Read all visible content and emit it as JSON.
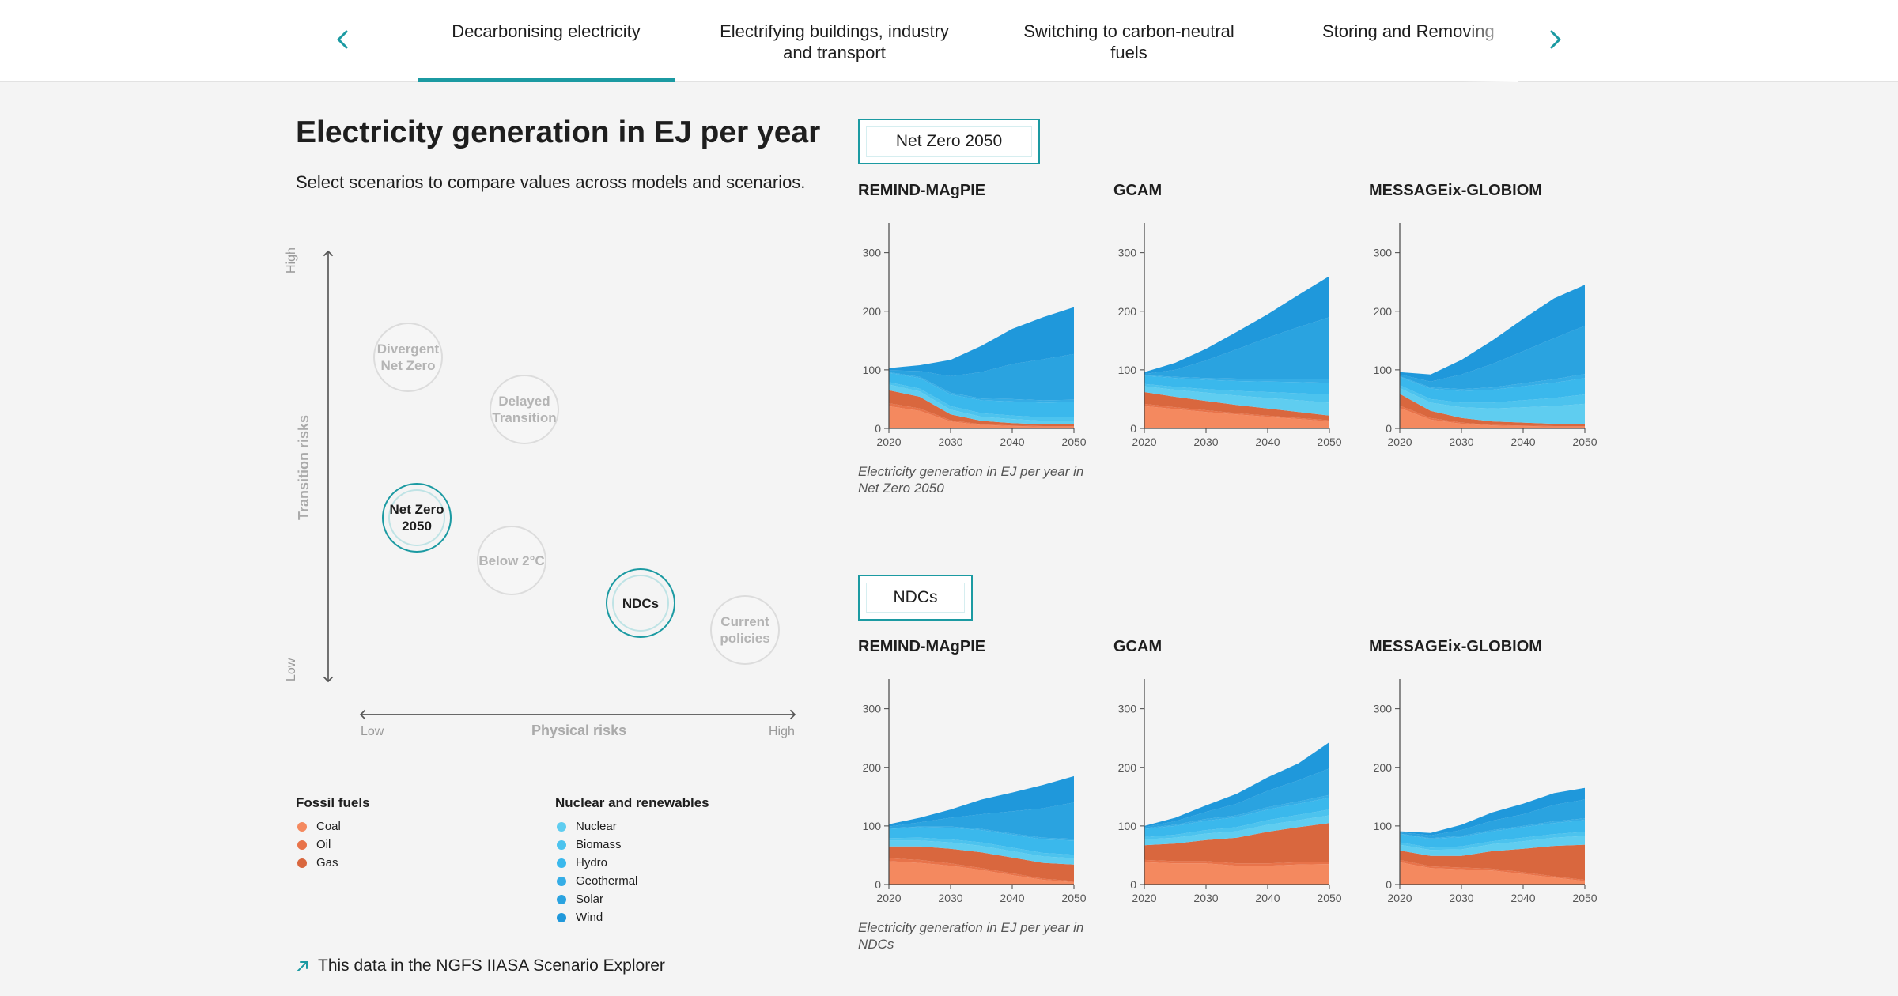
{
  "tabs": {
    "items": [
      {
        "label": "Decarbonising electricity",
        "active": true
      },
      {
        "label": "Electrifying buildings, industry and transport",
        "active": false
      },
      {
        "label": "Switching to carbon-neutral fuels",
        "active": false
      },
      {
        "label": "Storing and Removing",
        "active": false
      }
    ],
    "prev_icon": "chevron-left-icon",
    "next_icon": "chevron-right-icon"
  },
  "header": {
    "title": "Electricity generation in EJ per year",
    "subtitle": "Select scenarios to compare values across models and scenarios."
  },
  "scenario_map": {
    "y_axis": {
      "title": "Transition risks",
      "high": "High",
      "low": "Low"
    },
    "x_axis": {
      "title": "Physical risks",
      "low": "Low",
      "high": "High"
    },
    "bubbles": [
      {
        "label": "Divergent Net Zero",
        "selected": false
      },
      {
        "label": "Delayed Transition",
        "selected": false
      },
      {
        "label": "Net Zero 2050",
        "selected": true
      },
      {
        "label": "Below 2°C",
        "selected": false
      },
      {
        "label": "NDCs",
        "selected": true
      },
      {
        "label": "Current policies",
        "selected": false
      }
    ]
  },
  "legend": {
    "fossil": {
      "title": "Fossil fuels",
      "items": [
        {
          "label": "Coal",
          "color": "#f4895f"
        },
        {
          "label": "Oil",
          "color": "#e8734a"
        },
        {
          "label": "Gas",
          "color": "#d9673e"
        }
      ]
    },
    "renewables": {
      "title": "Nuclear and renewables",
      "items": [
        {
          "label": "Nuclear",
          "color": "#5fcdf0"
        },
        {
          "label": "Biomass",
          "color": "#4cc3ee"
        },
        {
          "label": "Hydro",
          "color": "#3ab8ec"
        },
        {
          "label": "Geothermal",
          "color": "#35ade6"
        },
        {
          "label": "Solar",
          "color": "#2aa3e0"
        },
        {
          "label": "Wind",
          "color": "#1f98db"
        }
      ]
    }
  },
  "explorer_link": {
    "label": "This data in the NGFS IIASA Scenario Explorer",
    "icon": "arrow-up-right-icon"
  },
  "colors": {
    "accent": "#1b9aa2"
  },
  "chart_data": [
    {
      "scenario": "Net Zero 2050",
      "caption": "Electricity generation in EJ per year in Net Zero 2050",
      "charts": [
        {
          "model": "REMIND-MAgPIE",
          "type": "area",
          "x": [
            2020,
            2025,
            2030,
            2035,
            2040,
            2045,
            2050
          ],
          "ylim": [
            0,
            340
          ],
          "yticks": [
            0,
            100,
            200,
            300
          ],
          "series": [
            {
              "name": "Coal",
              "values": [
                38,
                30,
                12,
                6,
                4,
                3,
                3
              ]
            },
            {
              "name": "Oil",
              "values": [
                5,
                4,
                2,
                1,
                1,
                1,
                1
              ]
            },
            {
              "name": "Gas",
              "values": [
                22,
                20,
                10,
                6,
                4,
                3,
                3
              ]
            },
            {
              "name": "Nuclear",
              "values": [
                10,
                9,
                8,
                7,
                7,
                6,
                6
              ]
            },
            {
              "name": "Biomass",
              "values": [
                4,
                5,
                6,
                6,
                6,
                6,
                6
              ]
            },
            {
              "name": "Hydro",
              "values": [
                16,
                18,
                20,
                22,
                24,
                25,
                26
              ]
            },
            {
              "name": "Geothermal",
              "values": [
                1,
                2,
                3,
                3,
                4,
                4,
                4
              ]
            },
            {
              "name": "Solar",
              "values": [
                3,
                10,
                28,
                45,
                60,
                70,
                78
              ]
            },
            {
              "name": "Wind",
              "values": [
                4,
                10,
                28,
                45,
                60,
                72,
                80
              ]
            }
          ]
        },
        {
          "model": "GCAM",
          "type": "area",
          "x": [
            2020,
            2025,
            2030,
            2035,
            2040,
            2045,
            2050
          ],
          "ylim": [
            0,
            340
          ],
          "yticks": [
            0,
            100,
            200,
            300
          ],
          "series": [
            {
              "name": "Coal",
              "values": [
                38,
                33,
                28,
                24,
                20,
                16,
                12
              ]
            },
            {
              "name": "Oil",
              "values": [
                4,
                3,
                3,
                2,
                2,
                2,
                2
              ]
            },
            {
              "name": "Gas",
              "values": [
                20,
                18,
                16,
                14,
                12,
                10,
                8
              ]
            },
            {
              "name": "Nuclear",
              "values": [
                10,
                12,
                14,
                16,
                18,
                20,
                22
              ]
            },
            {
              "name": "Biomass",
              "values": [
                4,
                5,
                6,
                8,
                10,
                12,
                14
              ]
            },
            {
              "name": "Hydro",
              "values": [
                14,
                15,
                16,
                17,
                18,
                19,
                20
              ]
            },
            {
              "name": "Geothermal",
              "values": [
                1,
                2,
                3,
                4,
                5,
                6,
                7
              ]
            },
            {
              "name": "Solar",
              "values": [
                2,
                12,
                30,
                50,
                70,
                88,
                105
              ]
            },
            {
              "name": "Wind",
              "values": [
                3,
                12,
                20,
                30,
                40,
                55,
                70
              ]
            }
          ]
        },
        {
          "model": "MESSAGEix-GLOBIOM",
          "type": "area",
          "x": [
            2020,
            2025,
            2030,
            2035,
            2040,
            2045,
            2050
          ],
          "ylim": [
            0,
            340
          ],
          "yticks": [
            0,
            100,
            200,
            300
          ],
          "series": [
            {
              "name": "Coal",
              "values": [
                35,
                15,
                8,
                5,
                4,
                3,
                3
              ]
            },
            {
              "name": "Oil",
              "values": [
                4,
                3,
                2,
                1,
                1,
                1,
                1
              ]
            },
            {
              "name": "Gas",
              "values": [
                20,
                12,
                8,
                6,
                5,
                4,
                4
              ]
            },
            {
              "name": "Nuclear",
              "values": [
                10,
                14,
                18,
                22,
                26,
                30,
                34
              ]
            },
            {
              "name": "Biomass",
              "values": [
                5,
                6,
                8,
                10,
                12,
                14,
                16
              ]
            },
            {
              "name": "Hydro",
              "values": [
                14,
                18,
                20,
                22,
                24,
                26,
                28
              ]
            },
            {
              "name": "Geothermal",
              "values": [
                1,
                2,
                3,
                4,
                5,
                6,
                7
              ]
            },
            {
              "name": "Solar",
              "values": [
                3,
                10,
                25,
                40,
                55,
                70,
                82
              ]
            },
            {
              "name": "Wind",
              "values": [
                4,
                12,
                25,
                40,
                55,
                68,
                70
              ]
            }
          ]
        }
      ]
    },
    {
      "scenario": "NDCs",
      "caption": "Electricity generation in EJ per year in NDCs",
      "charts": [
        {
          "model": "REMIND-MAgPIE",
          "type": "area",
          "x": [
            2020,
            2025,
            2030,
            2035,
            2040,
            2045,
            2050
          ],
          "ylim": [
            0,
            340
          ],
          "yticks": [
            0,
            100,
            200,
            300
          ],
          "series": [
            {
              "name": "Coal",
              "values": [
                40,
                37,
                32,
                25,
                16,
                8,
                4
              ]
            },
            {
              "name": "Oil",
              "values": [
                5,
                5,
                4,
                3,
                3,
                2,
                2
              ]
            },
            {
              "name": "Gas",
              "values": [
                20,
                23,
                25,
                27,
                27,
                27,
                28
              ]
            },
            {
              "name": "Nuclear",
              "values": [
                10,
                10,
                11,
                11,
                11,
                11,
                11
              ]
            },
            {
              "name": "Biomass",
              "values": [
                4,
                5,
                5,
                6,
                6,
                6,
                6
              ]
            },
            {
              "name": "Hydro",
              "values": [
                16,
                18,
                20,
                21,
                22,
                23,
                24
              ]
            },
            {
              "name": "Geothermal",
              "values": [
                1,
                1,
                2,
                2,
                2,
                3,
                3
              ]
            },
            {
              "name": "Solar",
              "values": [
                3,
                7,
                15,
                25,
                38,
                50,
                62
              ]
            },
            {
              "name": "Wind",
              "values": [
                4,
                8,
                14,
                25,
                32,
                40,
                45
              ]
            }
          ]
        },
        {
          "model": "GCAM",
          "type": "area",
          "x": [
            2020,
            2025,
            2030,
            2035,
            2040,
            2045,
            2050
          ],
          "ylim": [
            0,
            340
          ],
          "yticks": [
            0,
            100,
            200,
            300
          ],
          "series": [
            {
              "name": "Coal",
              "values": [
                38,
                36,
                36,
                32,
                32,
                34,
                35
              ]
            },
            {
              "name": "Oil",
              "values": [
                4,
                4,
                4,
                4,
                4,
                4,
                4
              ]
            },
            {
              "name": "Gas",
              "values": [
                25,
                30,
                36,
                44,
                54,
                60,
                66
              ]
            },
            {
              "name": "Nuclear",
              "values": [
                10,
                10,
                11,
                11,
                12,
                12,
                13
              ]
            },
            {
              "name": "Biomass",
              "values": [
                4,
                5,
                6,
                7,
                8,
                9,
                10
              ]
            },
            {
              "name": "Hydro",
              "values": [
                14,
                15,
                16,
                17,
                18,
                19,
                20
              ]
            },
            {
              "name": "Geothermal",
              "values": [
                1,
                2,
                3,
                3,
                4,
                4,
                5
              ]
            },
            {
              "name": "Solar",
              "values": [
                2,
                6,
                12,
                20,
                28,
                36,
                45
              ]
            },
            {
              "name": "Wind",
              "values": [
                2,
                6,
                11,
                17,
                23,
                29,
                45
              ]
            }
          ]
        },
        {
          "model": "MESSAGEix-GLOBIOM",
          "type": "area",
          "x": [
            2020,
            2025,
            2030,
            2035,
            2040,
            2045,
            2050
          ],
          "ylim": [
            0,
            340
          ],
          "yticks": [
            0,
            100,
            200,
            300
          ],
          "series": [
            {
              "name": "Coal",
              "values": [
                38,
                28,
                26,
                24,
                18,
                12,
                6
              ]
            },
            {
              "name": "Oil",
              "values": [
                4,
                3,
                3,
                3,
                3,
                2,
                2
              ]
            },
            {
              "name": "Gas",
              "values": [
                16,
                18,
                20,
                30,
                40,
                52,
                60
              ]
            },
            {
              "name": "Nuclear",
              "values": [
                10,
                10,
                11,
                12,
                13,
                14,
                15
              ]
            },
            {
              "name": "Biomass",
              "values": [
                4,
                4,
                5,
                5,
                6,
                6,
                7
              ]
            },
            {
              "name": "Hydro",
              "values": [
                14,
                15,
                16,
                17,
                18,
                19,
                20
              ]
            },
            {
              "name": "Geothermal",
              "values": [
                1,
                1,
                2,
                2,
                2,
                3,
                3
              ]
            },
            {
              "name": "Solar",
              "values": [
                2,
                5,
                10,
                16,
                20,
                28,
                32
              ]
            },
            {
              "name": "Wind",
              "values": [
                2,
                4,
                9,
                14,
                18,
                20,
                20
              ]
            }
          ]
        }
      ]
    }
  ]
}
